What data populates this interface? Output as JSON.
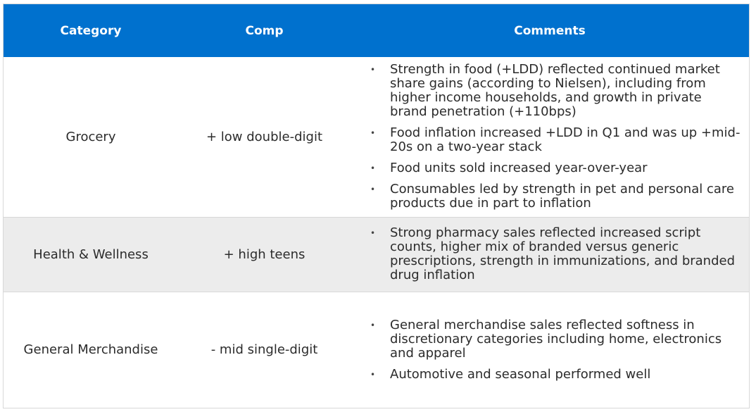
{
  "header": {
    "category": "Category",
    "comp": "Comp",
    "comments": "Comments"
  },
  "rows": [
    {
      "category": "Grocery",
      "comp": "+ low double-digit",
      "comments": [
        "Strength in food (+LDD) reflected continued market share gains (according to Nielsen), including from higher income households, and growth in private brand penetration (+110bps)",
        "Food inflation increased +LDD in Q1 and was up +mid-20s on a two-year stack",
        "Food units sold increased year-over-year",
        "Consumables led by strength in pet and personal care products due in part to inflation"
      ]
    },
    {
      "category": "Health & Wellness",
      "comp": "+ high teens",
      "comments": [
        "Strong pharmacy sales reflected increased script counts, higher mix of branded versus generic prescriptions, strength in immunizations, and branded drug inflation"
      ]
    },
    {
      "category": "General Merchandise",
      "comp": "- mid single-digit",
      "comments": [
        "General merchandise sales reflected softness in discretionary categories including home, electronics and apparel",
        "Automotive and seasonal performed well"
      ]
    }
  ],
  "colors": {
    "header_bg": "#0071ce",
    "header_text": "#ffffff",
    "alt_row_bg": "#ececec"
  }
}
